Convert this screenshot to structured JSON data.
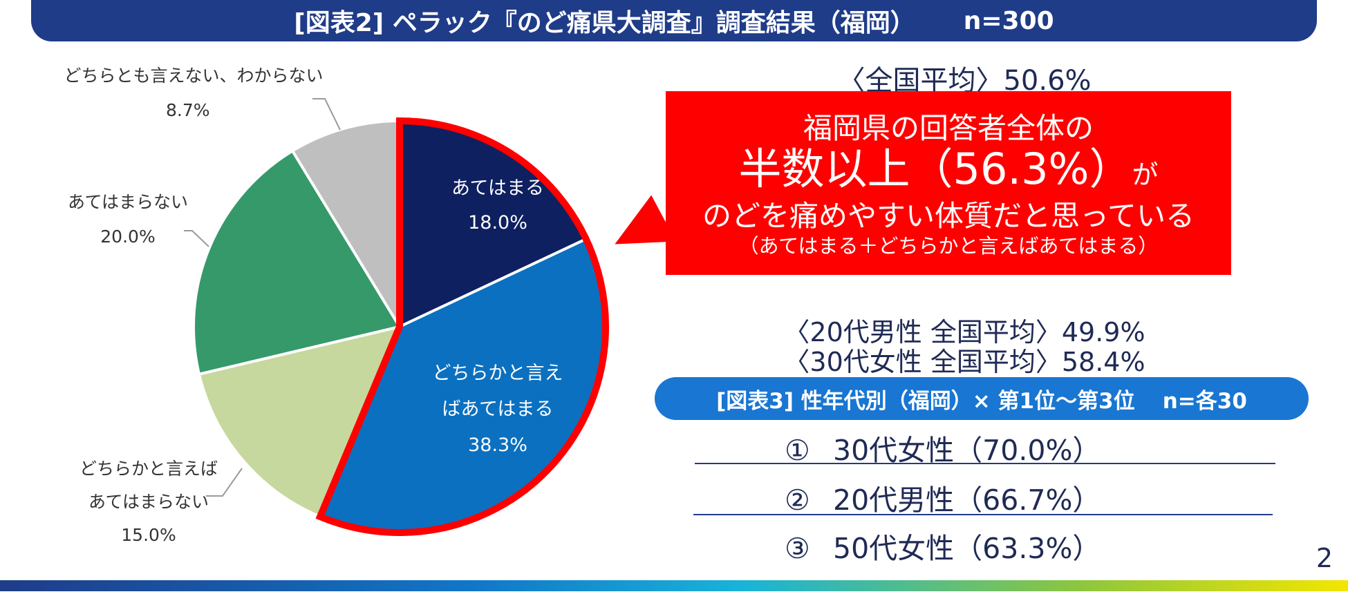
{
  "header": {
    "title": "[図表2] ペラック『のど痛県大調査』調査結果（福岡）",
    "n": "n=300"
  },
  "chart_data": {
    "type": "pie",
    "title": "[図表2] ペラック『のど痛県大調査』調査結果（福岡）",
    "slices": [
      {
        "name": "あてはまる",
        "value": 18.0,
        "display": "18.0%",
        "color": "#0f2060"
      },
      {
        "name": "どちらかと言えばあてはまる",
        "value": 38.3,
        "display": "38.3%",
        "color": "#0b70c0"
      },
      {
        "name": "どちらかと言えばあてはまらない",
        "value": 15.0,
        "display": "15.0%",
        "color": "#c6d89d"
      },
      {
        "name": "あてはまらない",
        "value": 20.0,
        "display": "20.0%",
        "color": "#36996a"
      },
      {
        "name": "どちらとも言えない、わからない",
        "value": 8.7,
        "display": "8.7%",
        "color": "#bfbfbf"
      }
    ],
    "highlight": [
      "あてはまる",
      "どちらかと言えばあてはまる"
    ],
    "highlight_color": "#ff0000"
  },
  "labels": {
    "s0_l1": "あてはまる",
    "s1_l1": "どちらかと言え",
    "s1_l2": "ばあてはまる",
    "s2_l1": "どちらかと言えば",
    "s2_l2": "あてはまらない",
    "s3_l1": "あてはまらない",
    "s4_l1": "どちらとも言えない、わからない"
  },
  "national_avg": "〈全国平均〉50.6%",
  "callout": {
    "line1": "福岡県の回答者全体の",
    "line2_main": "半数以上（56.3%）",
    "line2_suffix": "が",
    "line3": "のどを痛めやすい体質だと思っている",
    "line4": "（あてはまる＋どちらかと言えばあてはまる）"
  },
  "averages": {
    "male20": "〈20代男性 全国平均〉49.9%",
    "female30": "〈30代女性 全国平均〉58.4%"
  },
  "ranking": {
    "title": "[図表3] 性年代別（福岡）× 第1位～第3位",
    "n": "n=各30",
    "items": [
      {
        "mark": "①",
        "text": "30代女性（70.0%）"
      },
      {
        "mark": "②",
        "text": "20代男性（66.7%）"
      },
      {
        "mark": "③",
        "text": "50代女性（63.3%）"
      }
    ]
  },
  "page_number": "2"
}
